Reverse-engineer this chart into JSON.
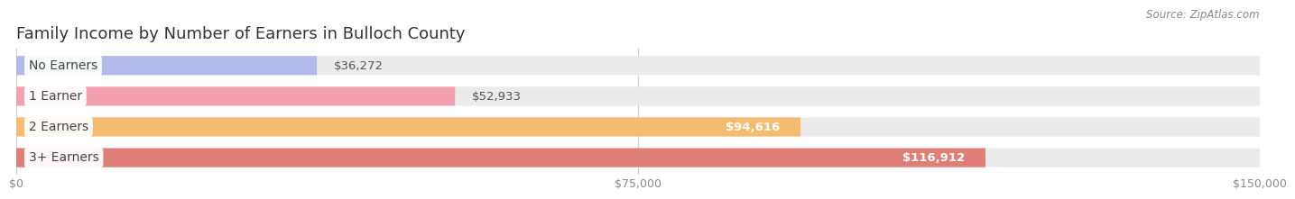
{
  "title": "Family Income by Number of Earners in Bulloch County",
  "source": "Source: ZipAtlas.com",
  "categories": [
    "No Earners",
    "1 Earner",
    "2 Earners",
    "3+ Earners"
  ],
  "values": [
    36272,
    52933,
    94616,
    116912
  ],
  "bar_colors": [
    "#b3b9e8",
    "#f4a0b0",
    "#f5bc70",
    "#e07e78"
  ],
  "bar_bg_color": "#ebebeb",
  "xlim": [
    0,
    150000
  ],
  "xticks": [
    0,
    75000,
    150000
  ],
  "xtick_labels": [
    "$0",
    "$75,000",
    "$150,000"
  ],
  "value_labels": [
    "$36,272",
    "$52,933",
    "$94,616",
    "$116,912"
  ],
  "value_inside": [
    false,
    false,
    true,
    true
  ],
  "bg_color": "#ffffff",
  "title_fontsize": 13,
  "label_fontsize": 10,
  "value_fontsize": 9.5,
  "tick_fontsize": 9,
  "source_fontsize": 8.5
}
